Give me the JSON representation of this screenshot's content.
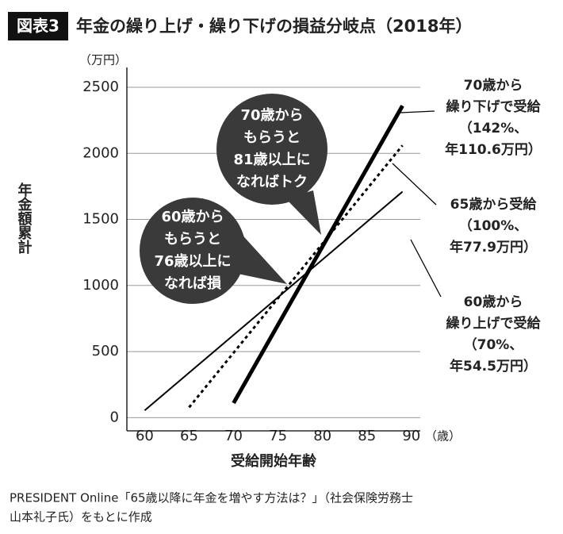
{
  "chart_data": {
    "type": "line",
    "badge": "図表3",
    "title": "年金の繰り上げ・繰り下げの損益分岐点（2018年）",
    "y_unit": "（万円）",
    "x_unit": "（歳）",
    "ylabel": "年金額累計",
    "xlabel": "受給開始年齢",
    "xlim": [
      58,
      91
    ],
    "ylim": [
      -100,
      2650
    ],
    "xticks": [
      60,
      65,
      70,
      75,
      80,
      85,
      90
    ],
    "yticks": [
      0,
      500,
      1000,
      1500,
      2000,
      2500
    ],
    "grid": true,
    "series": [
      {
        "name": "60歳",
        "color": "#000000",
        "line_width": 2,
        "dashed": false,
        "x": [
          60,
          89
        ],
        "values": [
          54.5,
          1710
        ]
      },
      {
        "name": "65歳",
        "color": "#000000",
        "line_width": 3,
        "dashed": true,
        "x": [
          65,
          89
        ],
        "values": [
          77.9,
          2060
        ]
      },
      {
        "name": "70歳",
        "color": "#000000",
        "line_width": 5,
        "dashed": false,
        "x": [
          70,
          89
        ],
        "values": [
          110.6,
          2360
        ]
      }
    ],
    "bubbles": [
      {
        "lines": [
          "70歳から",
          "もらうと",
          "81歳以上に",
          "なればトク"
        ]
      },
      {
        "lines": [
          "60歳から",
          "もらうと",
          "76歳以上に",
          "なれば損"
        ]
      }
    ],
    "labels": [
      {
        "lines": [
          "70歳から",
          "繰り下げで受給",
          "（142%、",
          "年110.6万円）"
        ]
      },
      {
        "lines": [
          "65歳から受給",
          "（100%、",
          "年77.9万円）"
        ]
      },
      {
        "lines": [
          "60歳から",
          "繰り上げで受給",
          "（70%、",
          "年54.5万円）"
        ]
      }
    ],
    "source": [
      "PRESIDENT Online「65歳以降に年金を増やす方法は？」（社会保険労務士",
      "山本礼子氏）をもとに作成"
    ]
  }
}
